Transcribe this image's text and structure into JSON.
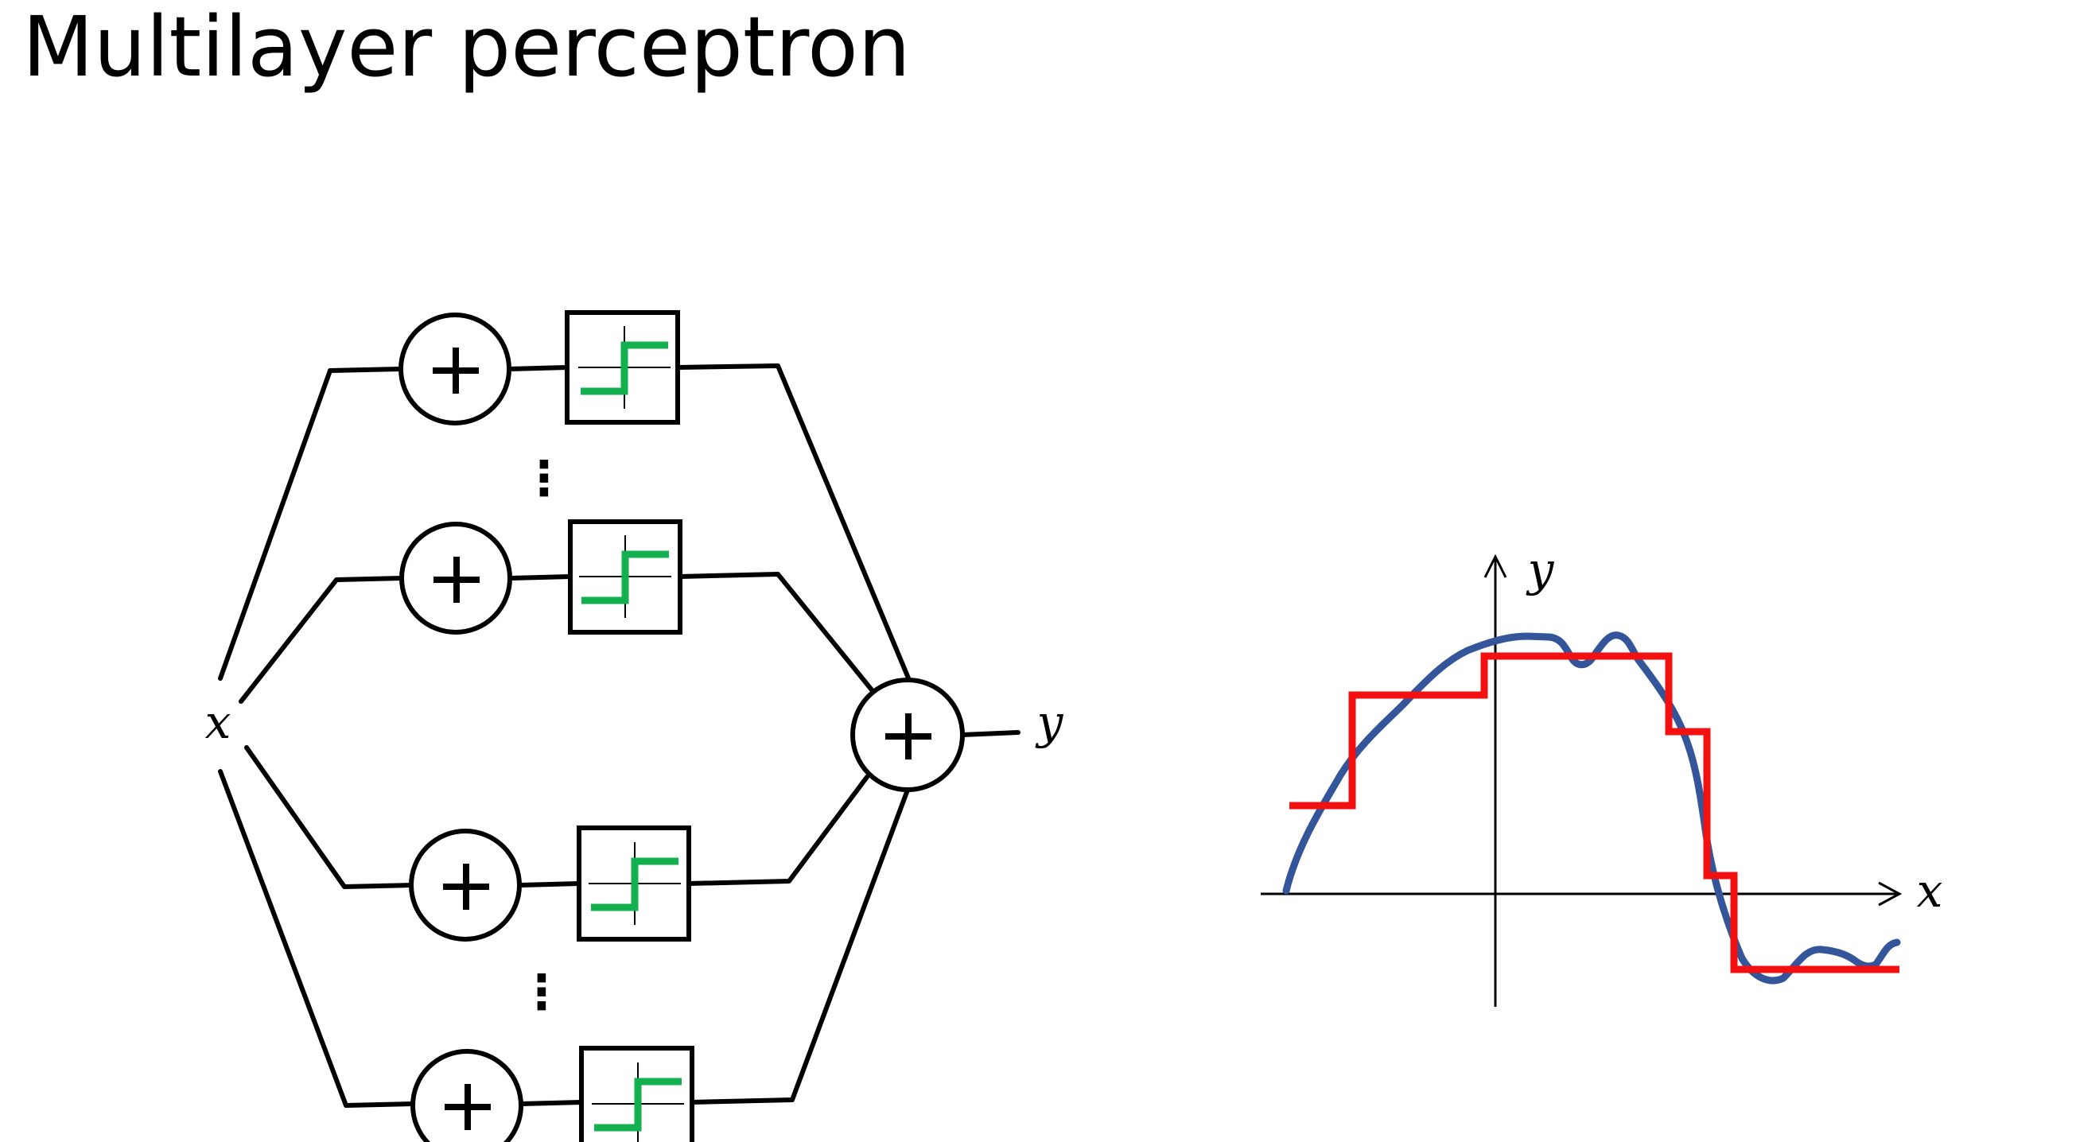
{
  "title": "Multilayer perceptron",
  "network": {
    "input_label": "x",
    "output_label": "y",
    "units_top_group": 2,
    "units_bottom_group": 2,
    "ellipsis": "⋮",
    "activation": "step function",
    "colors": {
      "activation_curve": "#12b04f",
      "lines": "#000000"
    }
  },
  "plot": {
    "x_label": "x",
    "y_label": "y",
    "colors": {
      "target_curve": "#34559a",
      "step_approximation": "#f21010"
    }
  }
}
